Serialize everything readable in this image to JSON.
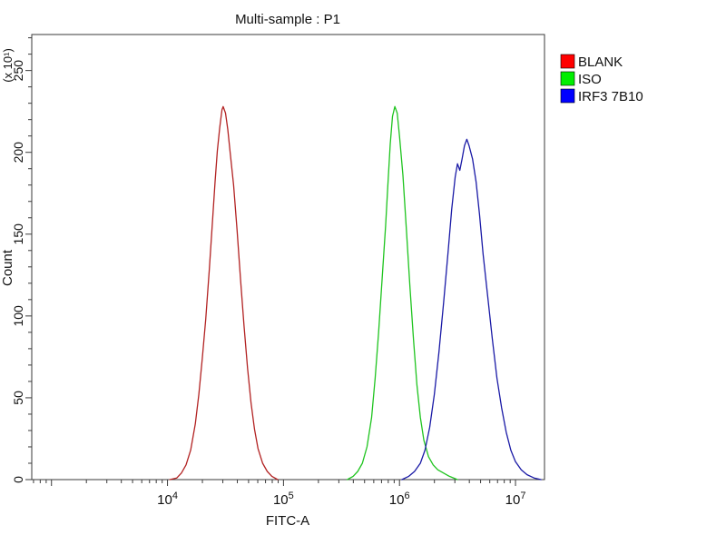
{
  "chart_data": {
    "type": "line",
    "title": "Multi-sample : P1",
    "xlabel": "FITC-A",
    "ylabel": "Count",
    "y_scale_label": "(x 10¹)",
    "x_axis": {
      "scale": "log10",
      "log_range": [
        2.83,
        7.25
      ],
      "major_tick_exponents": [
        4,
        5,
        6,
        7
      ],
      "tick_label_base": "10"
    },
    "y_axis": {
      "range": [
        0,
        272
      ],
      "major_ticks": [
        0,
        50,
        100,
        150,
        200,
        250
      ],
      "minor_step": 10
    },
    "grid": false,
    "legend_position": "right-outside",
    "series": [
      {
        "name": "BLANK",
        "color": "#b22222",
        "legend_color": "#ff0000",
        "peak_x": 30000,
        "peak_count": 228,
        "points_logx_count": [
          [
            4.02,
            0
          ],
          [
            4.08,
            1
          ],
          [
            4.12,
            4
          ],
          [
            4.16,
            9
          ],
          [
            4.2,
            18
          ],
          [
            4.24,
            34
          ],
          [
            4.27,
            52
          ],
          [
            4.3,
            74
          ],
          [
            4.33,
            98
          ],
          [
            4.36,
            128
          ],
          [
            4.39,
            160
          ],
          [
            4.41,
            182
          ],
          [
            4.43,
            201
          ],
          [
            4.45,
            215
          ],
          [
            4.47,
            226
          ],
          [
            4.48,
            228
          ],
          [
            4.5,
            224
          ],
          [
            4.52,
            214
          ],
          [
            4.54,
            200
          ],
          [
            4.57,
            180
          ],
          [
            4.6,
            152
          ],
          [
            4.63,
            122
          ],
          [
            4.66,
            94
          ],
          [
            4.69,
            68
          ],
          [
            4.72,
            47
          ],
          [
            4.75,
            31
          ],
          [
            4.78,
            19
          ],
          [
            4.82,
            10
          ],
          [
            4.86,
            5
          ],
          [
            4.9,
            2
          ],
          [
            4.95,
            0
          ]
        ]
      },
      {
        "name": "ISO",
        "color": "#1fc41f",
        "legend_color": "#00ee00",
        "peak_x": 870000,
        "peak_count": 228,
        "points_logx_count": [
          [
            5.55,
            0
          ],
          [
            5.6,
            2
          ],
          [
            5.64,
            5
          ],
          [
            5.68,
            10
          ],
          [
            5.72,
            20
          ],
          [
            5.76,
            38
          ],
          [
            5.79,
            62
          ],
          [
            5.82,
            90
          ],
          [
            5.85,
            122
          ],
          [
            5.88,
            155
          ],
          [
            5.9,
            180
          ],
          [
            5.92,
            205
          ],
          [
            5.94,
            222
          ],
          [
            5.96,
            228
          ],
          [
            5.98,
            224
          ],
          [
            6.0,
            210
          ],
          [
            6.03,
            186
          ],
          [
            6.06,
            152
          ],
          [
            6.09,
            118
          ],
          [
            6.12,
            86
          ],
          [
            6.15,
            58
          ],
          [
            6.18,
            38
          ],
          [
            6.21,
            24
          ],
          [
            6.25,
            14
          ],
          [
            6.29,
            9
          ],
          [
            6.33,
            6
          ],
          [
            6.38,
            4
          ],
          [
            6.43,
            2
          ],
          [
            6.5,
            0
          ]
        ]
      },
      {
        "name": "IRF3 7B10",
        "color": "#1a1aa6",
        "legend_color": "#0000ff",
        "peak_x": 3800000,
        "peak_count": 208,
        "points_logx_count": [
          [
            6.02,
            0
          ],
          [
            6.08,
            2
          ],
          [
            6.13,
            5
          ],
          [
            6.18,
            10
          ],
          [
            6.22,
            18
          ],
          [
            6.26,
            32
          ],
          [
            6.3,
            52
          ],
          [
            6.34,
            78
          ],
          [
            6.38,
            108
          ],
          [
            6.42,
            140
          ],
          [
            6.45,
            165
          ],
          [
            6.48,
            185
          ],
          [
            6.5,
            193
          ],
          [
            6.52,
            189
          ],
          [
            6.54,
            196
          ],
          [
            6.56,
            204
          ],
          [
            6.58,
            208
          ],
          [
            6.6,
            204
          ],
          [
            6.63,
            196
          ],
          [
            6.66,
            182
          ],
          [
            6.69,
            162
          ],
          [
            6.72,
            138
          ],
          [
            6.76,
            112
          ],
          [
            6.8,
            86
          ],
          [
            6.84,
            62
          ],
          [
            6.88,
            44
          ],
          [
            6.92,
            29
          ],
          [
            6.96,
            18
          ],
          [
            7.0,
            11
          ],
          [
            7.05,
            6
          ],
          [
            7.1,
            3
          ],
          [
            7.16,
            1
          ],
          [
            7.22,
            0
          ]
        ]
      }
    ]
  }
}
